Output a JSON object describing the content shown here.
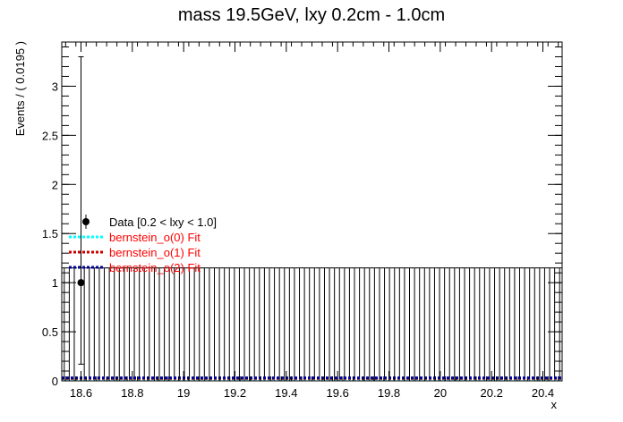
{
  "chart_data": {
    "type": "scatter",
    "title": "mass 19.5GeV, lxy 0.2cm - 1.0cm",
    "xlabel": "x",
    "ylabel": "Events / ( 0.0195 )",
    "xlim": [
      18.525,
      20.475
    ],
    "ylim": [
      0,
      3.45
    ],
    "bin_width": 0.0195,
    "x_ticks": [
      "18.6",
      "18.8",
      "19",
      "19.2",
      "19.4",
      "19.6",
      "19.8",
      "20",
      "20.2",
      "20.4"
    ],
    "y_ticks": [
      "0",
      "0.5",
      "1",
      "1.5",
      "2",
      "2.5",
      "3"
    ],
    "grid": false,
    "series": [
      {
        "name": "Data [0.2 < lxy < 1.0]",
        "kind": "points",
        "color": "#000000",
        "points": [
          {
            "x": 18.6,
            "y": 1.0,
            "err_low": 0.83,
            "err_high": 2.3
          }
        ],
        "zero_bin_err_high": 1.15
      },
      {
        "name": "bernstein_o(0) Fit",
        "kind": "line",
        "color": "#00ffff",
        "label_color": "#ff0000",
        "y": 0.02
      },
      {
        "name": "bernstein_o(1) Fit",
        "kind": "line",
        "color": "#cc0000",
        "label_color": "#ff0000",
        "y": 0.02
      },
      {
        "name": "bernstein_o(2) Fit",
        "kind": "line",
        "color": "#000099",
        "label_color": "#ff0000",
        "y": 0.02
      }
    ],
    "legend_position": "left-middle"
  }
}
